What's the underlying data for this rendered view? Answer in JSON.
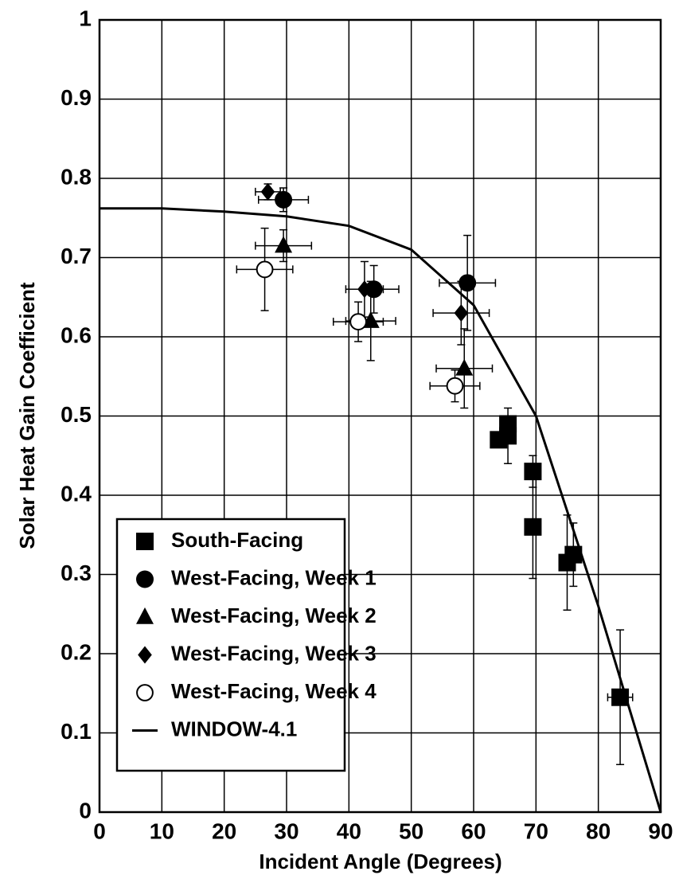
{
  "chart_data": {
    "type": "scatter",
    "xlabel": "Incident Angle  (Degrees)",
    "ylabel": "Solar Heat Gain Coefficient",
    "xlim": [
      0,
      90
    ],
    "ylim": [
      0,
      1
    ],
    "xticks": [
      0,
      10,
      20,
      30,
      40,
      50,
      60,
      70,
      80,
      90
    ],
    "yticks": [
      0,
      0.1,
      0.2,
      0.3,
      0.4,
      0.5,
      0.6,
      0.7,
      0.8,
      0.9,
      1
    ],
    "grid": true,
    "legend": "lower left",
    "series": [
      {
        "name": "South-Facing",
        "marker": "square",
        "color": "#000000",
        "x": [
          64,
          65.5,
          65.5,
          69.5,
          69.5,
          75,
          76,
          83.5
        ],
        "values": [
          0.47,
          0.475,
          0.49,
          0.43,
          0.36,
          0.315,
          0.325,
          0.145
        ],
        "xerr": [
          1,
          1,
          1,
          0.5,
          0.5,
          1,
          1,
          2
        ],
        "yerr": [
          0.01,
          0.035,
          0.01,
          0.02,
          0.065,
          0.06,
          0.04,
          0.085
        ]
      },
      {
        "name": "West-Facing, Week 1",
        "marker": "circle",
        "color": "#000000",
        "x": [
          29.5,
          44,
          59
        ],
        "values": [
          0.773,
          0.66,
          0.668
        ],
        "xerr": [
          4,
          4,
          4.5
        ],
        "yerr": [
          0.015,
          0.03,
          0.06
        ]
      },
      {
        "name": "West-Facing, Week 2",
        "marker": "triangle",
        "color": "#000000",
        "x": [
          29.5,
          43.5,
          58.5
        ],
        "values": [
          0.715,
          0.62,
          0.56
        ],
        "xerr": [
          4.5,
          4,
          4.5
        ],
        "yerr": [
          0.02,
          0.05,
          0.05
        ]
      },
      {
        "name": "West-Facing, Week 3",
        "marker": "diamond",
        "color": "#000000",
        "x": [
          27,
          42.5,
          58
        ],
        "values": [
          0.783,
          0.66,
          0.63
        ],
        "xerr": [
          2,
          3,
          4.5
        ],
        "yerr": [
          0.01,
          0.035,
          0.04
        ]
      },
      {
        "name": "West-Facing, Week 4",
        "marker": "open-circle",
        "color": "#000000",
        "x": [
          26.5,
          41.5,
          57
        ],
        "values": [
          0.685,
          0.619,
          0.538
        ],
        "xerr": [
          4.5,
          4,
          4
        ],
        "yerr": [
          0.052,
          0.025,
          0.02
        ]
      },
      {
        "name": "WINDOW-4.1",
        "marker": "line",
        "color": "#000000",
        "x": [
          0,
          10,
          20,
          30,
          40,
          50,
          60,
          70,
          80,
          90
        ],
        "values": [
          0.762,
          0.762,
          0.758,
          0.752,
          0.74,
          0.71,
          0.64,
          0.5,
          0.26,
          0
        ]
      }
    ]
  }
}
